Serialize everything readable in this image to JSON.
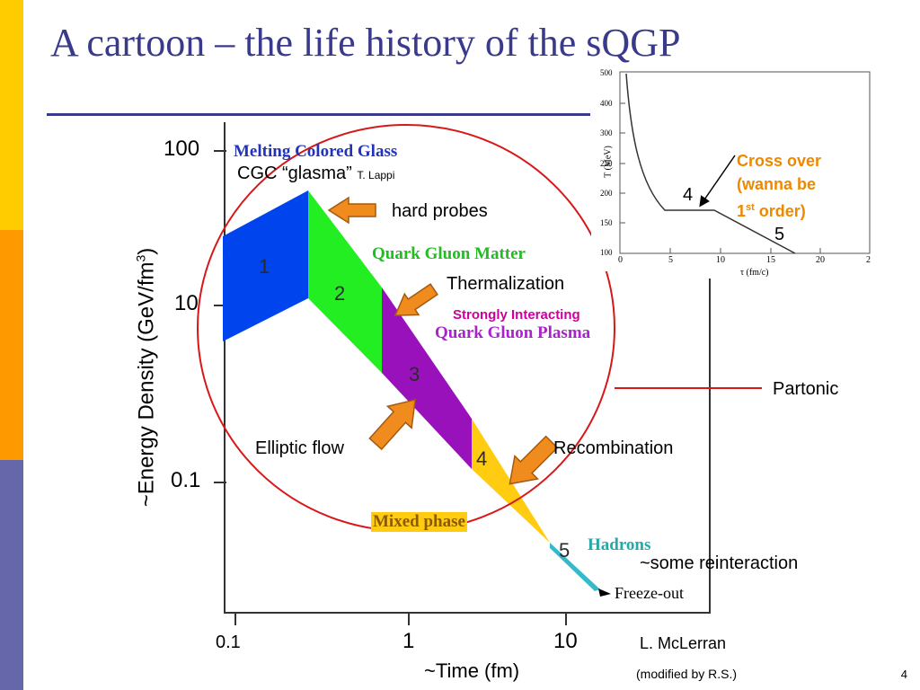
{
  "slide": {
    "title": "A cartoon – the life history of the sQGP",
    "page_number": "4",
    "colors": {
      "title": "#3a3a8c",
      "stripe_top": "#ffcc00",
      "stripe_mid": "#ff9900",
      "stripe_bottom": "#6666aa",
      "circle": "#d81818",
      "arrow": "#f08c1e"
    }
  },
  "axes": {
    "y_label": "Energy  Density (GeV/fm",
    "y_label_sup": "3",
    "y_label_close": ")",
    "y_tilde": "~",
    "x_label": "Time (fm)",
    "x_tilde": "~",
    "y_ticks": [
      "100",
      "10",
      "0.1"
    ],
    "x_ticks": [
      "0.1",
      "1",
      "10"
    ]
  },
  "regions": {
    "melting_colored_glass": "Melting Colored Glass",
    "quark_gluon_matter": "Quark Gluon Matter",
    "quark_gluon_plasma": "Quark Gluon Plasma",
    "mixed_phase": "Mixed phase",
    "hadrons": "Hadrons",
    "freeze_out": "Freeze-out",
    "stages": [
      "1",
      "2",
      "3",
      "4",
      "5"
    ]
  },
  "annotations": {
    "cgc_glasma": "CGC “glasma”",
    "t_lappi": "T. Lappi",
    "hard_probes": "hard probes",
    "thermalization": "Thermalization",
    "strongly_interacting": "Strongly Interacting",
    "elliptic_flow": "Elliptic flow",
    "recombination": "Recombination",
    "partonic": "Partonic",
    "some_reinteraction": "~some reinteraction",
    "credit_1": "L. McLerran",
    "credit_2": "(modified by R.S.)"
  },
  "inset": {
    "y_ticks": [
      "500",
      "400",
      "300",
      "250",
      "200",
      "150",
      "100"
    ],
    "x_ticks": [
      "0",
      "5",
      "10",
      "15",
      "20",
      "2"
    ],
    "y_axis_label": "T (MeV)",
    "x_axis_label": "τ (fm/c)",
    "label_4": "4",
    "label_5": "5",
    "cross_over_1": "Cross over",
    "cross_over_2": "(wanna be",
    "cross_over_3a": "1",
    "cross_over_3_sup": "st",
    "cross_over_3b": " order)"
  }
}
